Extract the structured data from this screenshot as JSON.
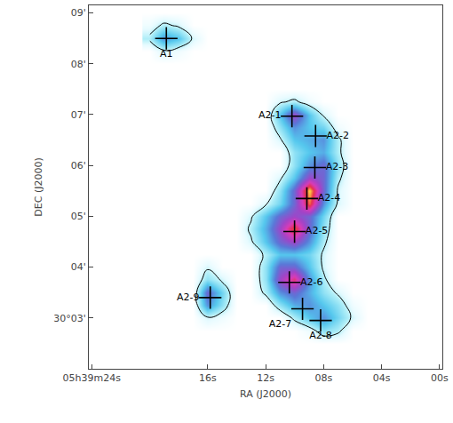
{
  "chart_data": {
    "type": "contour",
    "x_label": "RA (J2000)",
    "y_label": "DEC (J2000)",
    "xlim": [
      24.2,
      -0.2
    ],
    "xticks": [
      {
        "value": 24,
        "label": "05h39m24s"
      },
      {
        "value": 16,
        "label": "16s"
      },
      {
        "value": 12,
        "label": "12s"
      },
      {
        "value": 8,
        "label": "08s"
      },
      {
        "value": 4,
        "label": "04s"
      },
      {
        "value": 0,
        "label": "00s"
      }
    ],
    "ylim": [
      2.0,
      9.15
    ],
    "yticks": [
      {
        "value": 3,
        "label": "30°03'"
      },
      {
        "value": 4,
        "label": "04'"
      },
      {
        "value": 5,
        "label": "05'"
      },
      {
        "value": 6,
        "label": "06'"
      },
      {
        "value": 7,
        "label": "07'"
      },
      {
        "value": 8,
        "label": "08'"
      },
      {
        "value": 9,
        "label": "09'"
      }
    ],
    "grid": false,
    "cells": {
      "x": [
        20,
        19,
        18,
        17,
        16,
        15,
        14,
        13,
        12,
        11,
        10,
        9,
        8,
        7,
        6,
        5
      ],
      "y": [
        2.5,
        2.75,
        3.0,
        3.25,
        3.5,
        3.75,
        4.0,
        4.25,
        4.5,
        4.75,
        5.0,
        5.25,
        5.5,
        5.75,
        6.0,
        6.25,
        6.5,
        6.75,
        7.0,
        7.25,
        7.5,
        7.75,
        8.0,
        8.25,
        8.5,
        8.75,
        9.0
      ],
      "z": [
        [
          0,
          0,
          0,
          0,
          0,
          0,
          0,
          0,
          0,
          0,
          0,
          0,
          0,
          0,
          0,
          0
        ],
        [
          0,
          0,
          0,
          0,
          0,
          0,
          0,
          0,
          0,
          0,
          0,
          0.5,
          2,
          1.5,
          0,
          0
        ],
        [
          0,
          0,
          0,
          0,
          1,
          0.5,
          0,
          0,
          0,
          0,
          1.5,
          3,
          4,
          2.5,
          1,
          0
        ],
        [
          0,
          0,
          0,
          0,
          4,
          2,
          0,
          0,
          0,
          2,
          3.5,
          4,
          3,
          2,
          0.5,
          0
        ],
        [
          0,
          0,
          0,
          0,
          5,
          2.5,
          0,
          0,
          1.5,
          4,
          5,
          3.5,
          2,
          1,
          0,
          0
        ],
        [
          0,
          0,
          0,
          0,
          2,
          1,
          0,
          0,
          2,
          6,
          8,
          4,
          1.5,
          0,
          0,
          0
        ],
        [
          0,
          0,
          0,
          0,
          1,
          0,
          0,
          0,
          2,
          5,
          5,
          3,
          1,
          0,
          0,
          0
        ],
        [
          0,
          0,
          0,
          0,
          0,
          0,
          0,
          0,
          1.5,
          3,
          3,
          2.5,
          1,
          0,
          0,
          0
        ],
        [
          0,
          0,
          0,
          0,
          0,
          0,
          0,
          1,
          3,
          5,
          6,
          4,
          1.5,
          0,
          0,
          0
        ],
        [
          0,
          0,
          0,
          0,
          0,
          0,
          0,
          1.5,
          3.5,
          6,
          9,
          5,
          2,
          0,
          0,
          0
        ],
        [
          0,
          0,
          0,
          0,
          0,
          0,
          0,
          1,
          3,
          5,
          6,
          5,
          2.5,
          0,
          0,
          0
        ],
        [
          0,
          0,
          0,
          0,
          0,
          0,
          0,
          0,
          1,
          2.5,
          5,
          9,
          4,
          1,
          0,
          0
        ],
        [
          0,
          0,
          0,
          0,
          0,
          0,
          0,
          0,
          0,
          2,
          5,
          10,
          5,
          1,
          0,
          0
        ],
        [
          0,
          0,
          0,
          0,
          0,
          0,
          0,
          0,
          0,
          1,
          3,
          6,
          5,
          1.5,
          0,
          0
        ],
        [
          0,
          0,
          0,
          0,
          0,
          0,
          0,
          0,
          0,
          0,
          2,
          4,
          5,
          2,
          0,
          0
        ],
        [
          0,
          0,
          0,
          0,
          0,
          0,
          0,
          0,
          0,
          0,
          2,
          3,
          3.5,
          1.5,
          0,
          0
        ],
        [
          0,
          0,
          0,
          0,
          0,
          0,
          0,
          0,
          0,
          1,
          3,
          3.5,
          4,
          1.5,
          0,
          0
        ],
        [
          0,
          0,
          0,
          0,
          0,
          0,
          0,
          0,
          0,
          2,
          4,
          3,
          2.5,
          0.5,
          0,
          0
        ],
        [
          0,
          0,
          0,
          0,
          0,
          0,
          0,
          0,
          0,
          3,
          6,
          3,
          1,
          0,
          0,
          0
        ],
        [
          0,
          0,
          0,
          0,
          0,
          0,
          0,
          0,
          0,
          1,
          1.5,
          0.5,
          0,
          0,
          0,
          0
        ],
        [
          0,
          0,
          0,
          0,
          0,
          0,
          0,
          0,
          0,
          0,
          0,
          0,
          0,
          0,
          0,
          0
        ],
        [
          0,
          0,
          0,
          0,
          0,
          0,
          0,
          0,
          0,
          0,
          0,
          0,
          0,
          0,
          0,
          0
        ],
        [
          0,
          0,
          0,
          0,
          0,
          0,
          0,
          0,
          0,
          0,
          0,
          0,
          0,
          0,
          0,
          0
        ],
        [
          0,
          1,
          0.5,
          0,
          0,
          0,
          0,
          0,
          0,
          0,
          0,
          0,
          0,
          0,
          0,
          0
        ],
        [
          1.5,
          4,
          3,
          1,
          0,
          0,
          0,
          0,
          0,
          0,
          0,
          0,
          0,
          0,
          0,
          0
        ],
        [
          0.5,
          1.5,
          1,
          0,
          0,
          0,
          0,
          0,
          0,
          0,
          0,
          0,
          0,
          0,
          0,
          0
        ],
        [
          0,
          0,
          0,
          0,
          0,
          0,
          0,
          0,
          0,
          0,
          0,
          0,
          0,
          0,
          0,
          0
        ]
      ]
    },
    "zlim": [
      0,
      10
    ],
    "contour_levels": [
      1.2
    ],
    "sources": {
      "names": [
        "A1",
        "A2-1",
        "A2-2",
        "A2-3",
        "A2-4",
        "A2-5",
        "A2-6",
        "A2-7",
        "A2-8",
        "A2-9"
      ],
      "x": [
        18.85,
        10.18,
        8.55,
        8.6,
        9.15,
        10.0,
        10.36,
        9.45,
        8.2,
        15.82
      ],
      "y": [
        8.5,
        6.97,
        6.58,
        5.96,
        5.35,
        4.7,
        3.7,
        3.18,
        2.95,
        3.4
      ],
      "marker": "cross",
      "color": "#000000"
    }
  }
}
